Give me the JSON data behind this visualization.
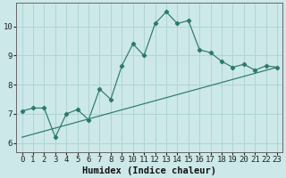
{
  "xlabel": "Humidex (Indice chaleur)",
  "bg_color": "#cce8e8",
  "line_color": "#2d7a6a",
  "grid_color": "#b0d4d4",
  "x_values": [
    0,
    1,
    2,
    3,
    4,
    5,
    6,
    7,
    8,
    9,
    10,
    11,
    12,
    13,
    14,
    15,
    16,
    17,
    18,
    19,
    20,
    21,
    22,
    23
  ],
  "y_values": [
    7.1,
    7.2,
    7.2,
    6.2,
    7.0,
    7.15,
    6.8,
    7.85,
    7.5,
    8.65,
    9.4,
    9.0,
    10.1,
    10.5,
    10.1,
    10.2,
    9.2,
    9.1,
    8.8,
    8.6,
    8.7,
    8.5,
    8.65,
    8.6
  ],
  "trend_x": [
    0,
    23
  ],
  "trend_y": [
    6.2,
    8.6
  ],
  "ylim": [
    5.7,
    10.8
  ],
  "xlim": [
    -0.5,
    23.5
  ],
  "yticks": [
    6,
    7,
    8,
    9,
    10
  ],
  "xticks": [
    0,
    1,
    2,
    3,
    4,
    5,
    6,
    7,
    8,
    9,
    10,
    11,
    12,
    13,
    14,
    15,
    16,
    17,
    18,
    19,
    20,
    21,
    22,
    23
  ],
  "tick_fontsize": 6.5,
  "xlabel_fontsize": 7.5
}
